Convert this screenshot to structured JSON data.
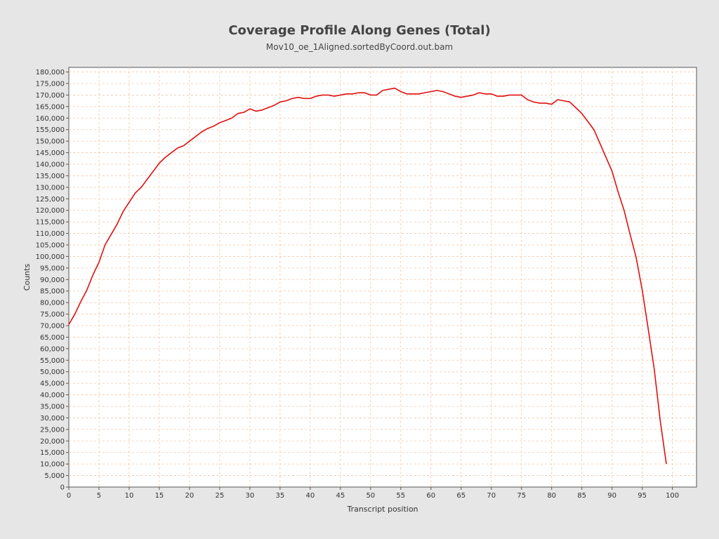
{
  "colors": {
    "background": "#e6e6e6",
    "plot_background": "#ffffff",
    "grid": "#f0c8a8",
    "line": "#e01010"
  },
  "chart_data": {
    "type": "line",
    "title": "Coverage Profile Along Genes (Total)",
    "subtitle": "Mov10_oe_1Aligned.sortedByCoord.out.bam",
    "xlabel": "Transcript position",
    "ylabel": "Counts",
    "xlim": [
      0,
      104
    ],
    "ylim": [
      0,
      182000
    ],
    "grid": true,
    "x_ticks": [
      0,
      5,
      10,
      15,
      20,
      25,
      30,
      35,
      40,
      45,
      50,
      55,
      60,
      65,
      70,
      75,
      80,
      85,
      90,
      95,
      100
    ],
    "y_ticks": [
      0,
      5000,
      10000,
      15000,
      20000,
      25000,
      30000,
      35000,
      40000,
      45000,
      50000,
      55000,
      60000,
      65000,
      70000,
      75000,
      80000,
      85000,
      90000,
      95000,
      100000,
      105000,
      110000,
      115000,
      120000,
      125000,
      130000,
      135000,
      140000,
      145000,
      150000,
      155000,
      160000,
      165000,
      170000,
      175000,
      180000
    ],
    "x_tick_labels": [
      "0",
      "5",
      "10",
      "15",
      "20",
      "25",
      "30",
      "35",
      "40",
      "45",
      "50",
      "55",
      "60",
      "65",
      "70",
      "75",
      "80",
      "85",
      "90",
      "95",
      "100"
    ],
    "y_tick_labels": [
      "0",
      "5,000",
      "10,000",
      "15,000",
      "20,000",
      "25,000",
      "30,000",
      "35,000",
      "40,000",
      "45,000",
      "50,000",
      "55,000",
      "60,000",
      "65,000",
      "70,000",
      "75,000",
      "80,000",
      "85,000",
      "90,000",
      "95,000",
      "100,000",
      "105,000",
      "110,000",
      "115,000",
      "120,000",
      "125,000",
      "130,000",
      "135,000",
      "140,000",
      "145,000",
      "150,000",
      "155,000",
      "160,000",
      "165,000",
      "170,000",
      "175,000",
      "180,000"
    ],
    "series": [
      {
        "x": [
          0,
          1,
          2,
          3,
          4,
          5,
          6,
          7,
          8,
          9,
          10,
          11,
          12,
          13,
          14,
          15,
          16,
          17,
          18,
          19,
          20,
          21,
          22,
          23,
          24,
          25,
          26,
          27,
          28,
          29,
          30,
          31,
          32,
          33,
          34,
          35,
          36,
          37,
          38,
          39,
          40,
          41,
          42,
          43,
          44,
          45,
          46,
          47,
          48,
          49,
          50,
          51,
          52,
          53,
          54,
          55,
          56,
          57,
          58,
          59,
          60,
          61,
          62,
          63,
          64,
          65,
          66,
          67,
          68,
          69,
          70,
          71,
          72,
          73,
          74,
          75,
          76,
          77,
          78,
          79,
          80,
          81,
          82,
          83,
          84,
          85,
          86,
          87,
          88,
          89,
          90,
          91,
          92,
          93,
          94,
          95,
          96,
          97,
          98,
          99
        ],
        "y": [
          70500,
          75000,
          80500,
          85500,
          92000,
          97500,
          105000,
          109500,
          114000,
          119500,
          123500,
          127500,
          130000,
          133500,
          137000,
          140500,
          143000,
          145000,
          147000,
          148000,
          150000,
          152000,
          154000,
          155500,
          156500,
          158000,
          159000,
          160000,
          162000,
          162500,
          164000,
          163000,
          163500,
          164500,
          165500,
          167000,
          167500,
          168500,
          169000,
          168500,
          168500,
          169500,
          170000,
          170000,
          169500,
          170000,
          170500,
          170500,
          171000,
          171000,
          170000,
          170000,
          172000,
          172500,
          173000,
          171500,
          170500,
          170500,
          170500,
          171000,
          171500,
          172000,
          171500,
          170500,
          169500,
          169000,
          169500,
          170000,
          171000,
          170500,
          170500,
          169500,
          169500,
          170000,
          170000,
          170000,
          168000,
          167000,
          166500,
          166500,
          166000,
          168000,
          167500,
          167000,
          164500,
          162000,
          158500,
          155000,
          149000,
          143000,
          137000,
          128000,
          120000,
          109500,
          99500,
          85500,
          68500,
          51000,
          28500,
          10000
        ]
      }
    ]
  }
}
